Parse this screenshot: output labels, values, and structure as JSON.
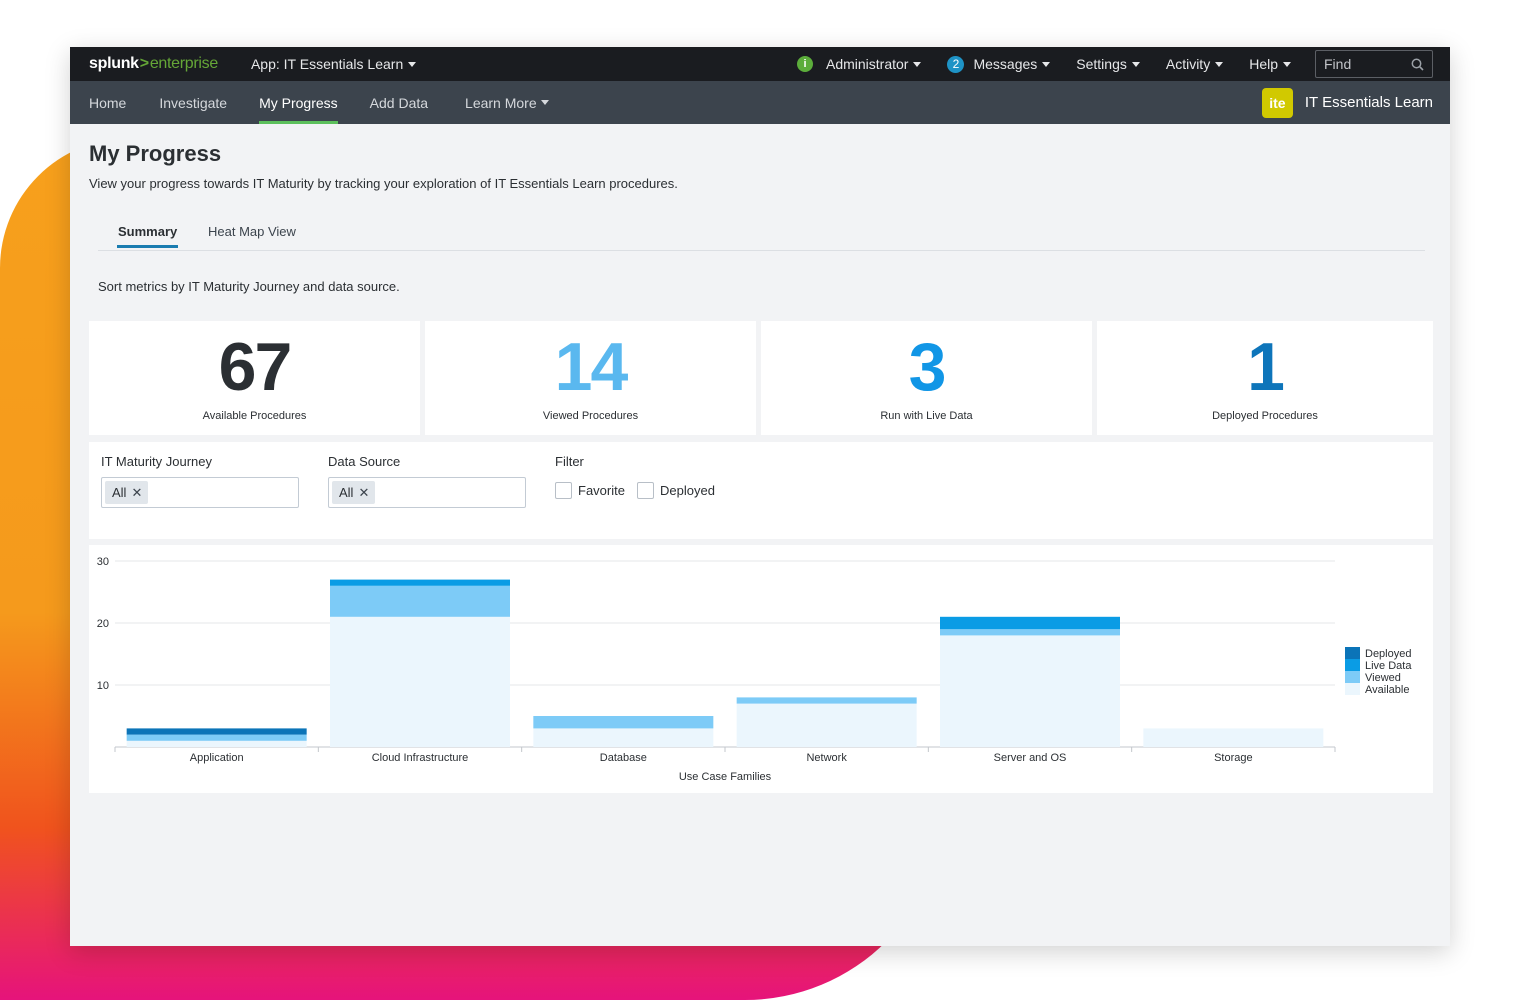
{
  "topbar": {
    "logo_main": "splunk",
    "logo_gt": ">",
    "logo_product": "enterprise",
    "app_menu": "App: IT Essentials Learn",
    "user": "Administrator",
    "status_glyph": "i",
    "messages_count": "2",
    "messages": "Messages",
    "settings": "Settings",
    "activity": "Activity",
    "help": "Help",
    "find_placeholder": "Find"
  },
  "nav": {
    "items": [
      "Home",
      "Investigate",
      "My Progress",
      "Add Data",
      "Learn More"
    ],
    "active": "My Progress",
    "badge": "ite",
    "app_name": "IT Essentials Learn"
  },
  "page": {
    "title": "My Progress",
    "description": "View your progress towards IT Maturity by tracking your exploration of IT Essentials Learn procedures.",
    "tabs": [
      "Summary",
      "Heat Map View"
    ],
    "active_tab": "Summary",
    "sort_text": "Sort metrics by IT Maturity Journey and data source."
  },
  "metrics": [
    {
      "value": "67",
      "label": "Available Procedures",
      "color": "#2b2f33"
    },
    {
      "value": "14",
      "label": "Viewed Procedures",
      "color": "#5ab8ef"
    },
    {
      "value": "3",
      "label": "Run with Live Data",
      "color": "#1196e6"
    },
    {
      "value": "1",
      "label": "Deployed Procedures",
      "color": "#0e75ba"
    }
  ],
  "filters": {
    "journey_label": "IT Maturity Journey",
    "journey_value": "All",
    "source_label": "Data Source",
    "source_value": "All",
    "filter_label": "Filter",
    "favorite": "Favorite",
    "deployed": "Deployed"
  },
  "chart_data": {
    "type": "bar",
    "stacked": true,
    "categories": [
      "Application",
      "Cloud Infrastructure",
      "Database",
      "Network",
      "Server and OS",
      "Storage"
    ],
    "series": [
      {
        "name": "Available",
        "values": [
          1,
          21,
          3,
          7,
          18,
          3
        ],
        "color": "#ebf6fd"
      },
      {
        "name": "Viewed",
        "values": [
          1,
          5,
          2,
          1,
          1,
          0
        ],
        "color": "#7dcbf7"
      },
      {
        "name": "Live Data",
        "values": [
          0,
          1,
          0,
          0,
          2,
          0
        ],
        "color": "#0a9ce5"
      },
      {
        "name": "Deployed",
        "values": [
          1,
          0,
          0,
          0,
          0,
          0
        ],
        "color": "#0b74b8"
      }
    ],
    "yticks": [
      10,
      20,
      30
    ],
    "ylim": [
      0,
      30
    ],
    "xlabel": "Use Case Families",
    "legend_order": [
      "Deployed",
      "Live Data",
      "Viewed",
      "Available"
    ],
    "legend_position": "right",
    "grid": true
  }
}
